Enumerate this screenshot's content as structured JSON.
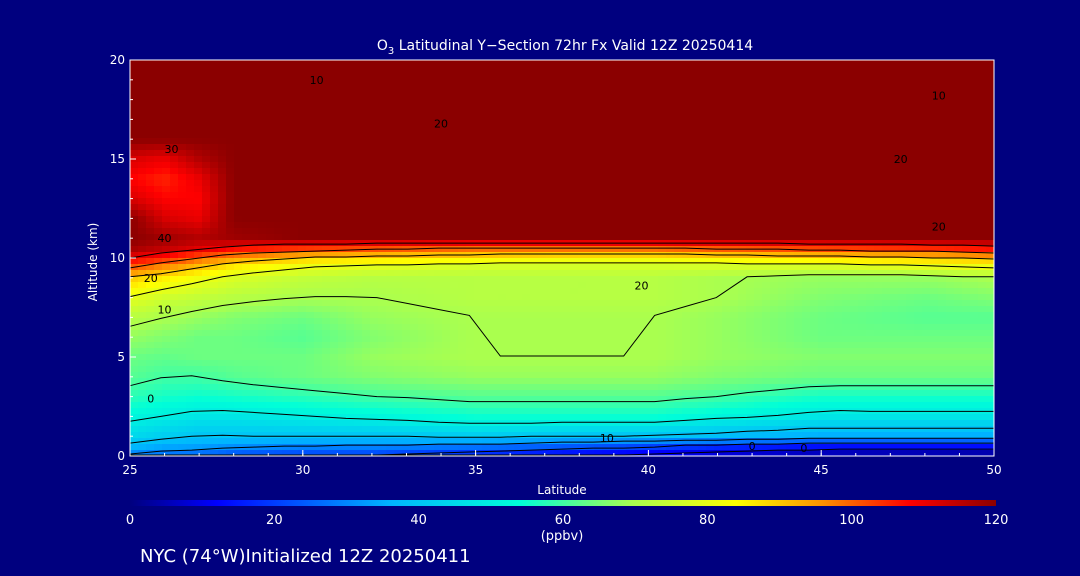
{
  "chart_data": {
    "type": "heatmap",
    "title_prefix": "O",
    "title_sub": "3",
    "title_rest": " Latitudinal Y−Section 72hr  Fx Valid 12Z 20250414",
    "xlabel": "Latitude",
    "ylabel": "Altitude (km)",
    "xlim": [
      25,
      50
    ],
    "ylim": [
      0,
      20
    ],
    "xticks": [
      "25",
      "30",
      "35",
      "40",
      "45",
      "50"
    ],
    "yticks": [
      "0",
      "5",
      "10",
      "15",
      "20"
    ],
    "x": [
      25,
      26,
      27,
      28,
      30,
      32,
      35,
      38,
      40,
      42,
      45,
      48,
      50
    ],
    "y": [
      0,
      0.5,
      1,
      2,
      3,
      4,
      5,
      6,
      7,
      8,
      9,
      9.5,
      10,
      10.5,
      11,
      12,
      13,
      14,
      15,
      16,
      18,
      20
    ],
    "values": [
      [
        28,
        25,
        25,
        22,
        20,
        20,
        15,
        10,
        8,
        5,
        2,
        1,
        0
      ],
      [
        38,
        35,
        34,
        32,
        30,
        30,
        28,
        25,
        22,
        18,
        15,
        15,
        15
      ],
      [
        45,
        42,
        40,
        40,
        40,
        40,
        42,
        40,
        40,
        38,
        35,
        35,
        35
      ],
      [
        52,
        50,
        48,
        48,
        50,
        52,
        55,
        55,
        55,
        52,
        48,
        48,
        48
      ],
      [
        58,
        56,
        55,
        56,
        58,
        60,
        62,
        62,
        62,
        60,
        56,
        56,
        56
      ],
      [
        62,
        60,
        60,
        62,
        64,
        66,
        68,
        68,
        68,
        66,
        64,
        64,
        64
      ],
      [
        64,
        63,
        64,
        64,
        64,
        68,
        70,
        70,
        70,
        68,
        66,
        66,
        66
      ],
      [
        68,
        66,
        64,
        64,
        62,
        66,
        70,
        70,
        70,
        68,
        64,
        64,
        64
      ],
      [
        72,
        70,
        68,
        66,
        64,
        68,
        70,
        70,
        70,
        68,
        64,
        62,
        62
      ],
      [
        80,
        76,
        74,
        72,
        70,
        70,
        72,
        72,
        72,
        70,
        66,
        64,
        66
      ],
      [
        90,
        86,
        82,
        78,
        74,
        72,
        72,
        72,
        72,
        70,
        68,
        68,
        70
      ],
      [
        100,
        95,
        90,
        85,
        80,
        78,
        76,
        76,
        76,
        76,
        76,
        78,
        80
      ],
      [
        110,
        106,
        100,
        95,
        90,
        88,
        86,
        84,
        84,
        86,
        88,
        90,
        92
      ],
      [
        118,
        115,
        112,
        108,
        105,
        103,
        100,
        100,
        100,
        102,
        104,
        106,
        108
      ],
      [
        120,
        118,
        116,
        118,
        120,
        120,
        120,
        120,
        120,
        120,
        120,
        120,
        120
      ],
      [
        120,
        112,
        110,
        120,
        120,
        120,
        120,
        120,
        120,
        120,
        120,
        120,
        120
      ],
      [
        112,
        108,
        108,
        120,
        120,
        120,
        120,
        120,
        120,
        120,
        120,
        120,
        120
      ],
      [
        108,
        105,
        110,
        120,
        120,
        120,
        120,
        120,
        120,
        120,
        120,
        120,
        120
      ],
      [
        112,
        110,
        116,
        120,
        120,
        120,
        120,
        120,
        120,
        120,
        120,
        120,
        120
      ],
      [
        120,
        120,
        120,
        120,
        120,
        120,
        120,
        120,
        120,
        120,
        120,
        120,
        120
      ],
      [
        120,
        120,
        120,
        120,
        120,
        120,
        120,
        120,
        120,
        120,
        120,
        120,
        120
      ],
      [
        120,
        120,
        120,
        120,
        120,
        120,
        120,
        120,
        120,
        120,
        120,
        120,
        120
      ]
    ],
    "contour_labels": [
      {
        "text": "10",
        "x": 30.4,
        "y": 19.0
      },
      {
        "text": "10",
        "x": 48.4,
        "y": 18.2
      },
      {
        "text": "20",
        "x": 34.0,
        "y": 16.8
      },
      {
        "text": "20",
        "x": 47.3,
        "y": 15.0
      },
      {
        "text": "20",
        "x": 48.4,
        "y": 11.6
      },
      {
        "text": "30",
        "x": 26.2,
        "y": 15.5
      },
      {
        "text": "40",
        "x": 26.0,
        "y": 11.0
      },
      {
        "text": "20",
        "x": 25.6,
        "y": 9.0
      },
      {
        "text": "10",
        "x": 26.0,
        "y": 7.4
      },
      {
        "text": "20",
        "x": 39.8,
        "y": 8.6
      },
      {
        "text": "0",
        "x": 25.6,
        "y": 2.9
      },
      {
        "text": "10",
        "x": 38.8,
        "y": 0.9
      },
      {
        "text": "0",
        "x": 43.0,
        "y": 0.5
      },
      {
        "text": "0",
        "x": 44.5,
        "y": 0.4
      }
    ],
    "colorbar": {
      "min": 0,
      "max": 120,
      "tick_labels": [
        "0",
        "20",
        "40",
        "60",
        "80",
        "100",
        "120"
      ],
      "unit": "(ppbv)"
    }
  },
  "footer": "NYC (74°W)Initialized 12Z 20250411",
  "colors": {
    "background": "#00007f",
    "text": "#ffffff",
    "contour": "#000000"
  }
}
